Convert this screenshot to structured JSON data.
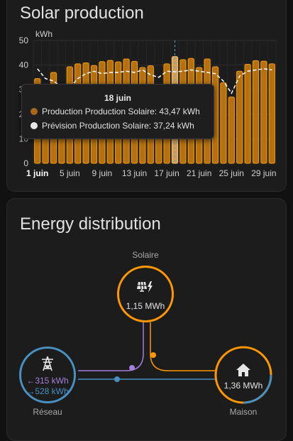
{
  "solar_card": {
    "title": "Solar production"
  },
  "chart_data": {
    "type": "bar",
    "ylabel": "kWh",
    "ylim": [
      0,
      50
    ],
    "yticks": [
      0,
      10,
      20,
      30,
      40,
      50
    ],
    "x": [
      1,
      2,
      3,
      4,
      5,
      6,
      7,
      8,
      9,
      10,
      11,
      12,
      13,
      14,
      15,
      16,
      17,
      18,
      19,
      20,
      21,
      22,
      23,
      24,
      25,
      26,
      27,
      28,
      29,
      30
    ],
    "xtick_labels": [
      "1 juin",
      "5 juin",
      "9 juin",
      "13 juin",
      "17 juin",
      "21 juin",
      "25 juin",
      "29 juin"
    ],
    "xtick_days": [
      1,
      5,
      9,
      13,
      17,
      21,
      25,
      29
    ],
    "series": [
      {
        "name": "Production Production Solaire",
        "color": "#f59b0b",
        "values": [
          34.5,
          31.4,
          37.0,
          18.3,
          39.3,
          40.5,
          40.9,
          39.8,
          41.4,
          41.9,
          41.3,
          42.5,
          41.5,
          39.0,
          39.7,
          28.2,
          40.5,
          43.47,
          42.2,
          42.7,
          39.0,
          42.5,
          39.3,
          32.8,
          27.0,
          37.5,
          40.3,
          41.8,
          41.6,
          40.5
        ]
      },
      {
        "name": "Prévision Production Solaire",
        "color": "#ffffff",
        "values": [
          38.5,
          34.5,
          33.5,
          31.0,
          30.8,
          34.5,
          36.5,
          37.5,
          36.5,
          37.0,
          37.0,
          37.5,
          37.0,
          38.0,
          36.0,
          35.0,
          37.5,
          37.24,
          37.5,
          38.0,
          37.5,
          37.0,
          36.5,
          33.5,
          28.5,
          35.5,
          37.5,
          38.0,
          38.5,
          38.0
        ]
      }
    ],
    "highlight_index": 17
  },
  "tooltip": {
    "title": "18 juin",
    "rows": [
      {
        "text": "Production Production Solaire: 43,47 kWh",
        "color": "#a8651b"
      },
      {
        "text": "Prévision Production Solaire: 37,24 kWh",
        "color": "#e6e6e6"
      }
    ]
  },
  "energy_card": {
    "title": "Energy distribution",
    "solar": {
      "label": "Solaire",
      "value": "1,15 MWh",
      "icon": "solar-panel-bolt-icon",
      "color": "#ff9800"
    },
    "grid": {
      "label": "Réseau",
      "from_grid": "←315 kWh",
      "to_grid": "→528 kWh",
      "icon": "transmission-tower-icon",
      "color": "#488fc2",
      "from_color": "#a280db"
    },
    "home": {
      "label": "Maison",
      "value": "1,36 MWh",
      "icon": "home-icon",
      "color": "#ff9800"
    }
  }
}
